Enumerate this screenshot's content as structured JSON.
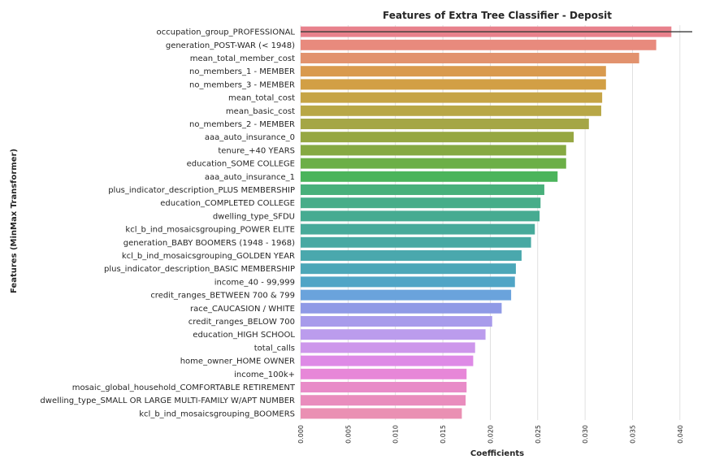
{
  "chart_data": {
    "type": "bar",
    "orientation": "horizontal",
    "title": "Features of Extra Tree Classifier - Deposit",
    "xlabel": "Coefficients",
    "ylabel": "Features (MinMax Transformer)",
    "xlim": [
      0.0,
      0.0413
    ],
    "xticks": [
      0.0,
      0.005,
      0.01,
      0.015,
      0.02,
      0.025,
      0.03,
      0.035,
      0.04
    ],
    "xtick_labels": [
      "0.000",
      "0.005",
      "0.010",
      "0.015",
      "0.020",
      "0.025",
      "0.030",
      "0.035",
      "0.040"
    ],
    "grid": "vertical",
    "categories": [
      "occupation_group_PROFESSIONAL",
      "generation_POST-WAR (< 1948)",
      "mean_total_member_cost",
      "no_members_1 - MEMBER",
      "no_members_3 - MEMBER",
      "mean_total_cost",
      "mean_basic_cost",
      "no_members_2 - MEMBER",
      "aaa_auto_insurance_0",
      "tenure_+40 YEARS",
      "education_SOME COLLEGE",
      "aaa_auto_insurance_1",
      "plus_indicator_description_PLUS MEMBERSHIP",
      "education_COMPLETED COLLEGE",
      "dwelling_type_SFDU",
      "kcl_b_ind_mosaicsgrouping_POWER ELITE",
      "generation_BABY BOOMERS (1948 - 1968)",
      "kcl_b_ind_mosaicsgrouping_GOLDEN YEAR",
      "plus_indicator_description_BASIC MEMBERSHIP",
      "income_40 - 99,999",
      "credit_ranges_BETWEEN 700 & 799",
      "race_CAUCASION / WHITE",
      "credit_ranges_BELOW 700",
      "education_HIGH SCHOOL",
      "total_calls",
      "home_owner_HOME OWNER",
      "income_100k+",
      "mosaic_global_household_COMFORTABLE RETIREMENT",
      "dwelling_type_SMALL OR LARGE MULTI-FAMILY W/APT NUMBER",
      "kcl_b_ind_mosaicsgrouping_BOOMERS"
    ],
    "values": [
      0.0391,
      0.0375,
      0.0357,
      0.0322,
      0.0322,
      0.0318,
      0.0317,
      0.0304,
      0.0288,
      0.028,
      0.028,
      0.0271,
      0.0257,
      0.0253,
      0.0252,
      0.0247,
      0.0243,
      0.0233,
      0.0227,
      0.0226,
      0.0222,
      0.0212,
      0.0202,
      0.0195,
      0.0184,
      0.0182,
      0.0175,
      0.0175,
      0.0174,
      0.017
    ],
    "colors": [
      "#e8818c",
      "#e88a7d",
      "#e2926e",
      "#d99a4e",
      "#d29f45",
      "#c6a446",
      "#b8a746",
      "#a5a646",
      "#96a742",
      "#86a942",
      "#6caf47",
      "#4bb45b",
      "#48b07b",
      "#47ad89",
      "#46ab91",
      "#47aa9a",
      "#48a9a3",
      "#4aa8ad",
      "#4ca7b8",
      "#50a5c6",
      "#6aa3dc",
      "#8f9ae6",
      "#a89beb",
      "#bb9ced",
      "#cd97eb",
      "#de8ae6",
      "#e787d8",
      "#e88bc8",
      "#e98dbd",
      "#ea90b3"
    ],
    "reference_line": {
      "value": 0.0413,
      "row": 0
    }
  }
}
